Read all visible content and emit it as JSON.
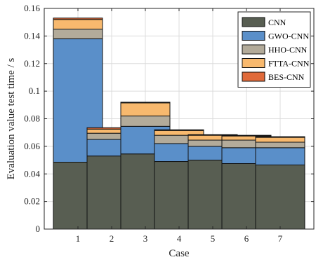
{
  "chart_data": {
    "type": "bar",
    "stacked": true,
    "xlabel": "Case",
    "ylabel": "Evaluation value test time / s",
    "categories": [
      "1",
      "2",
      "3",
      "4",
      "5",
      "6",
      "7"
    ],
    "ylim": [
      0,
      0.16
    ],
    "yticks": [
      "0",
      "0.02",
      "0.04",
      "0.06",
      "0.08",
      "0.1",
      "0.12",
      "0.14",
      "0.16"
    ],
    "grid": true,
    "legend_position": "top-right",
    "series": [
      {
        "name": "CNN",
        "color": "#585e52",
        "values": [
          0.0485,
          0.053,
          0.0545,
          0.049,
          0.05,
          0.0475,
          0.0465
        ]
      },
      {
        "name": "GWO-CNN",
        "color": "#5a8fc9",
        "values": [
          0.0895,
          0.012,
          0.02,
          0.013,
          0.01,
          0.0115,
          0.0125
        ]
      },
      {
        "name": "HHO-CNN",
        "color": "#b3ab9a",
        "values": [
          0.007,
          0.0045,
          0.0075,
          0.006,
          0.0045,
          0.0055,
          0.004
        ]
      },
      {
        "name": "FTTA-CNN",
        "color": "#f8b96e",
        "values": [
          0.007,
          0.003,
          0.0095,
          0.0035,
          0.0035,
          0.003,
          0.0035
        ]
      },
      {
        "name": "BES-CNN",
        "color": "#e06a3a",
        "values": [
          0.001,
          0.001,
          0.0005,
          0.0005,
          0.0005,
          0.0005,
          0.0005
        ]
      }
    ]
  }
}
